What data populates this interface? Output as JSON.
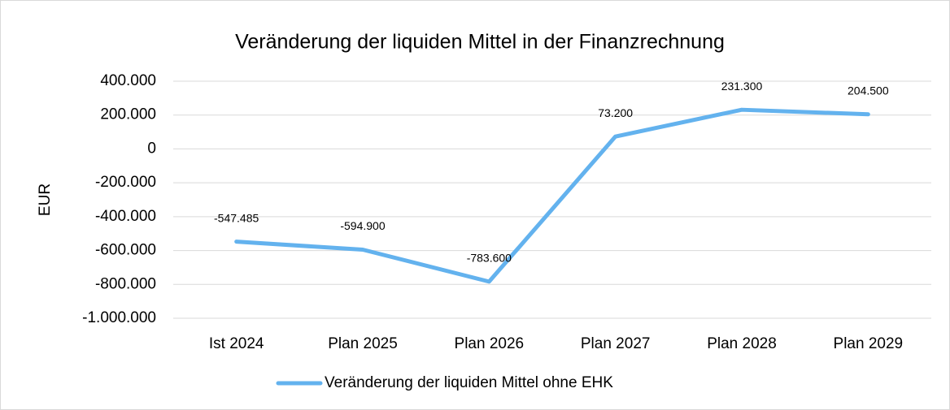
{
  "chart_data": {
    "type": "line",
    "title": "Veränderung der liquiden Mittel in der Finanzrechnung",
    "ylabel": "EUR",
    "categories": [
      "Ist 2024",
      "Plan 2025",
      "Plan 2026",
      "Plan 2027",
      "Plan 2028",
      "Plan 2029"
    ],
    "series": [
      {
        "name": "Veränderung der liquiden Mittel ohne EHK",
        "color": "#63b2ee",
        "values": [
          -547485,
          -594900,
          -783600,
          73200,
          231300,
          204500
        ],
        "value_labels": [
          "-547.485",
          "-594.900",
          "-783.600",
          "73.200",
          "231.300",
          "204.500"
        ]
      }
    ],
    "ylim": [
      -1000000,
      400000
    ],
    "yticks": [
      {
        "value": -1000000,
        "label": "-1.000.000"
      },
      {
        "value": -800000,
        "label": "-800.000"
      },
      {
        "value": -600000,
        "label": "-600.000"
      },
      {
        "value": -400000,
        "label": "-400.000"
      },
      {
        "value": -200000,
        "label": "-200.000"
      },
      0,
      {
        "value": 200000,
        "label": "200.000"
      },
      {
        "value": 400000,
        "label": "400.000"
      }
    ],
    "grid": true,
    "legend": "bottom"
  }
}
